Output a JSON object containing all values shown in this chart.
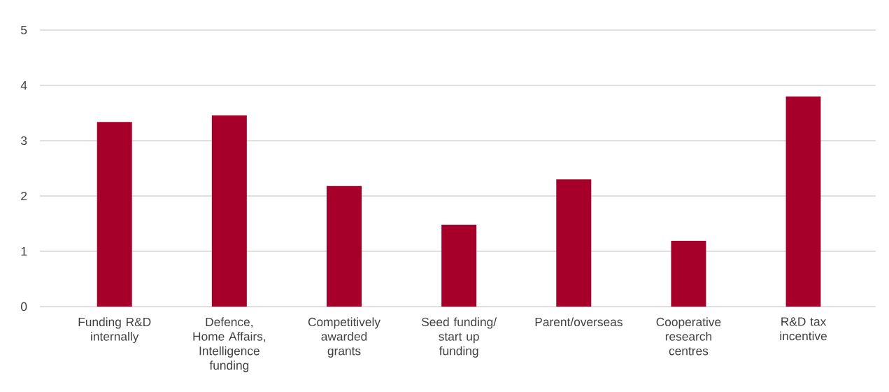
{
  "chart_data": {
    "type": "bar",
    "categories": [
      "Funding R&D internally",
      "Defence, Home Affairs, Intelligence funding",
      "Competitively awarded grants",
      "Seed funding/ start up funding",
      "Parent/overseas",
      "Cooperative research centres",
      "R&D tax incentive"
    ],
    "values": [
      3.34,
      3.46,
      2.18,
      1.48,
      2.3,
      1.19,
      3.8
    ],
    "color": "#a6002a",
    "ylim": [
      0,
      5
    ],
    "yticks": [
      0,
      1,
      2,
      3,
      4,
      5
    ],
    "grid": "y"
  }
}
